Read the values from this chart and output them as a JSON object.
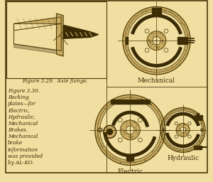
{
  "bg_color": "#f0dfa0",
  "border_color": "#7a6a2a",
  "line_color": "#4a3a0a",
  "dark_color": "#3a2a05",
  "stipple_color": "#c8aa60",
  "fig329_caption": "Figure 3.29.  Axle flange.",
  "fig330_caption": "Figure 3.30.\nBacking\nplates—for\nElectric,\nHydraulic,\nMechanical\nBrakes.\nMechanical\nbrake\ninformation\nwas provided\nby AL-KO.",
  "label_mechanical": "Mechanical",
  "label_electric": "Electric",
  "label_hydraulic": "Hydraulic",
  "font_size_caption": 5.2,
  "font_size_label": 6.5
}
